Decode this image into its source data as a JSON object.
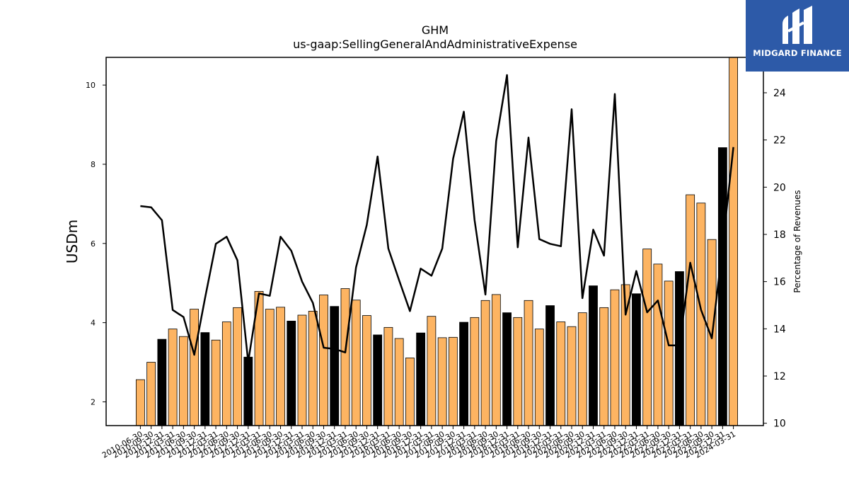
{
  "logo": {
    "text": "MIDGARD FINANCE",
    "icon": "midgard-logo-icon",
    "color": "#2d5aa8"
  },
  "chart_data": {
    "type": "bar",
    "title": "GHM",
    "subtitle": "us-gaap:SellingGeneralAndAdministrativeExpense",
    "ylabel": "USDm",
    "y2label": "Percentage of Revenues",
    "ylim": [
      1.4,
      10.7
    ],
    "y2lim": [
      9.9,
      25.5
    ],
    "yticks": [
      2,
      4,
      6,
      8,
      10
    ],
    "y2ticks": [
      10,
      12,
      14,
      16,
      18,
      20,
      22,
      24
    ],
    "grid": false,
    "legend": "none",
    "bar_colors": {
      "quarter": "#fdb462",
      "annual": "#000000"
    },
    "line_color": "#000000",
    "categories": [
      "2010-06-30",
      "2010-09-30",
      "2010-12-31",
      "2011-03-31",
      "2011-06-30",
      "2011-09-30",
      "2011-12-31",
      "2012-03-31",
      "2012-06-30",
      "2012-09-30",
      "2012-12-31",
      "2013-03-31",
      "2013-06-30",
      "2013-09-30",
      "2013-12-31",
      "2014-03-31",
      "2014-06-30",
      "2014-09-30",
      "2014-12-31",
      "2015-03-31",
      "2015-06-30",
      "2015-09-30",
      "2015-12-31",
      "2016-03-31",
      "2016-06-30",
      "2016-09-30",
      "2016-12-31",
      "2017-03-31",
      "2017-06-30",
      "2017-09-30",
      "2017-12-31",
      "2018-03-31",
      "2018-06-30",
      "2018-09-30",
      "2018-12-31",
      "2019-03-31",
      "2019-06-30",
      "2019-09-30",
      "2019-12-31",
      "2020-03-31",
      "2020-06-30",
      "2020-09-30",
      "2020-12-31",
      "2021-03-31",
      "2021-06-30",
      "2021-09-30",
      "2021-12-31",
      "2022-03-31",
      "2022-06-30",
      "2022-09-30",
      "2022-12-31",
      "2023-03-31",
      "2023-06-30",
      "2023-09-30",
      "2023-12-31",
      "2024-03-31"
    ],
    "series": [
      {
        "kind": "bar",
        "values": [
          2.56,
          3.0,
          3.58,
          3.84,
          3.65,
          4.34,
          3.75,
          3.56,
          4.02,
          4.38,
          3.13,
          4.79,
          4.34,
          4.39,
          4.04,
          4.19,
          4.29,
          4.7,
          4.41,
          4.86,
          4.57,
          4.18,
          3.69,
          3.88,
          3.6,
          3.11,
          3.74,
          4.16,
          3.62,
          3.63,
          4.01,
          4.13,
          4.56,
          4.71,
          4.25,
          4.13,
          4.56,
          3.84,
          4.43,
          4.02,
          3.9,
          4.25,
          4.93,
          4.38,
          4.83,
          4.96,
          4.73,
          5.86,
          5.48,
          5.05,
          5.29,
          7.23,
          7.02,
          6.1,
          8.42,
          10.7
        ],
        "annual": [
          false,
          false,
          true,
          false,
          false,
          false,
          true,
          false,
          false,
          false,
          true,
          false,
          false,
          false,
          true,
          false,
          false,
          false,
          true,
          false,
          false,
          false,
          true,
          false,
          false,
          false,
          true,
          false,
          false,
          false,
          true,
          false,
          false,
          false,
          true,
          false,
          false,
          false,
          true,
          false,
          false,
          false,
          true,
          false,
          false,
          false,
          true,
          false,
          false,
          false,
          true,
          false,
          false,
          false,
          true,
          false
        ]
      },
      {
        "kind": "line",
        "axis": "right",
        "values": [
          19.2,
          19.15,
          18.6,
          14.8,
          14.5,
          12.9,
          15.3,
          17.6,
          17.9,
          16.9,
          12.6,
          15.5,
          15.4,
          17.9,
          17.3,
          16.0,
          15.1,
          13.2,
          13.15,
          13.0,
          16.6,
          18.4,
          21.3,
          17.4,
          16.05,
          14.75,
          16.55,
          16.25,
          17.4,
          21.2,
          23.2,
          18.6,
          15.45,
          21.95,
          24.75,
          17.45,
          22.1,
          17.8,
          17.6,
          17.5,
          23.3,
          15.3,
          18.2,
          17.1,
          23.95,
          14.6,
          16.45,
          14.7,
          15.2,
          13.3,
          13.3,
          16.8,
          14.8,
          13.6,
          17.5,
          21.7
        ]
      }
    ]
  }
}
